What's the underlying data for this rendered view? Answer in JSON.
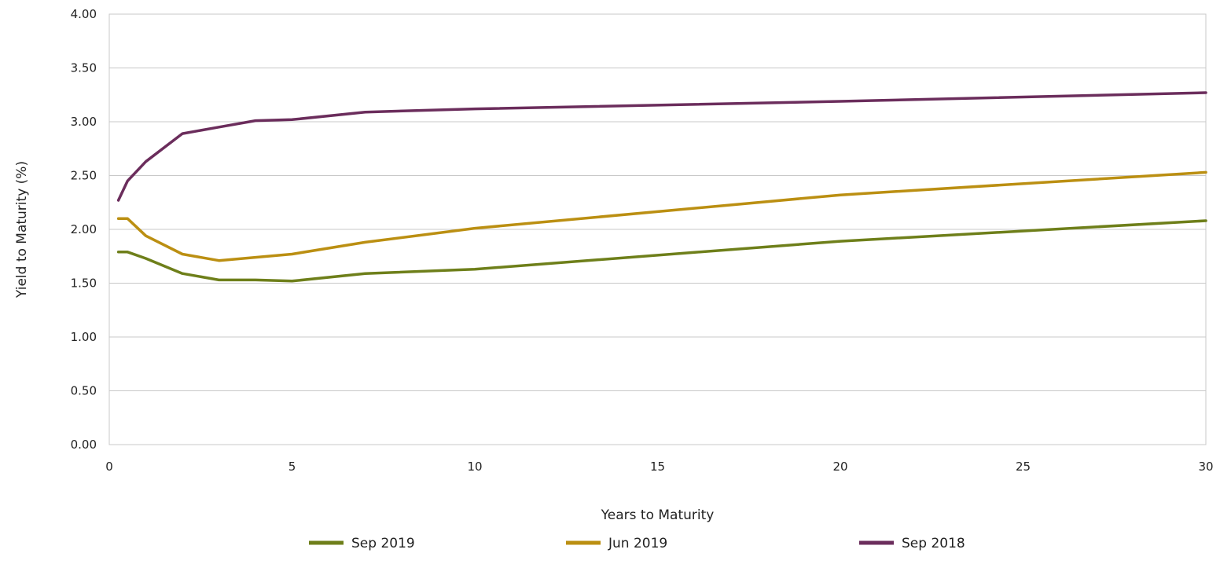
{
  "chart_data": {
    "type": "line",
    "title": "",
    "xlabel": "Years to Maturity",
    "ylabel": "Yield to Maturity (%)",
    "xlim": [
      0,
      30
    ],
    "ylim": [
      0,
      4
    ],
    "x_ticks": [
      "0",
      "5",
      "10",
      "15",
      "20",
      "25",
      "30"
    ],
    "y_ticks": [
      "0.00",
      "0.50",
      "1.00",
      "1.50",
      "2.00",
      "2.50",
      "3.00",
      "3.50",
      "4.00"
    ],
    "grid": "horizontal",
    "legend_position": "bottom",
    "x": [
      0.25,
      0.5,
      1,
      2,
      3,
      4,
      5,
      7,
      10,
      20,
      30
    ],
    "series": [
      {
        "name": "Sep 2019",
        "color": "#6e7f1a",
        "values": [
          1.79,
          1.79,
          1.73,
          1.59,
          1.53,
          1.53,
          1.52,
          1.59,
          1.63,
          1.89,
          2.08
        ]
      },
      {
        "name": "Jun 2019",
        "color": "#bb8f12",
        "values": [
          2.1,
          2.1,
          1.94,
          1.77,
          1.71,
          1.74,
          1.77,
          1.88,
          2.01,
          2.32,
          2.53
        ]
      },
      {
        "name": "Sep 2018",
        "color": "#6b2d5c",
        "values": [
          2.27,
          2.45,
          2.63,
          2.89,
          2.95,
          3.01,
          3.02,
          3.09,
          3.12,
          3.19,
          3.27
        ]
      }
    ]
  }
}
